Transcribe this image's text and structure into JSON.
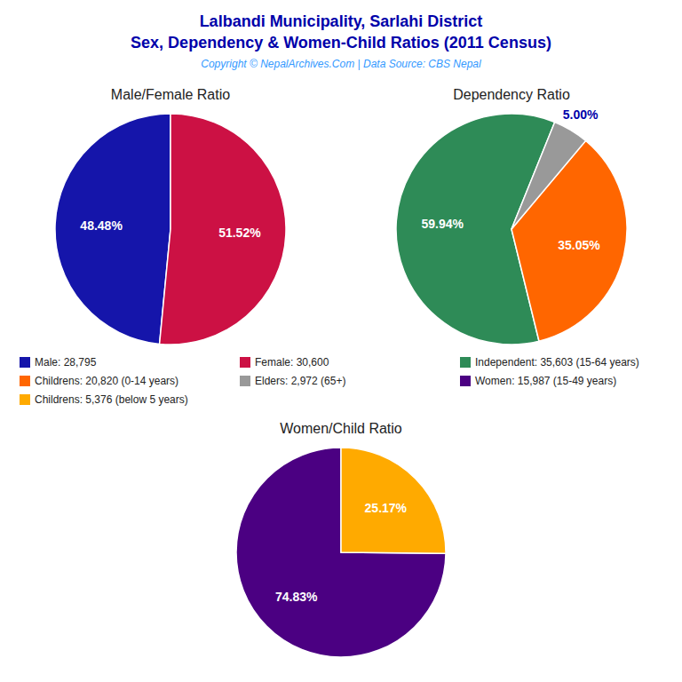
{
  "title": "Lalbandi Municipality, Sarlahi District",
  "subtitle": "Sex, Dependency & Women-Child Ratios (2011 Census)",
  "annotations": [
    "Copyright © NepalArchives.Com | Data Source: CBS Nepal"
  ],
  "chart_data": [
    {
      "type": "pie",
      "title": "Male/Female Ratio",
      "categories": [
        "Male: 28,795",
        "Female: 30,600"
      ],
      "values": [
        48.48,
        51.52
      ],
      "value_labels": [
        "48.48%",
        "51.52%"
      ],
      "colors": [
        "#1515AA",
        "#CC1144"
      ],
      "data_labels": true,
      "legend": "bottom"
    },
    {
      "type": "pie",
      "title": "Dependency Ratio",
      "categories": [
        "Independent: 35,603 (15-64 years)",
        "Childrens: 20,820 (0-14 years)",
        "Elders: 2,972 (65+)"
      ],
      "values": [
        59.94,
        35.05,
        5.0
      ],
      "value_labels": [
        "59.94%",
        "35.05%",
        "5.00%"
      ],
      "colors": [
        "#2E8B57",
        "#FF6600",
        "#999999"
      ],
      "data_labels": true,
      "legend": "bottom"
    },
    {
      "type": "pie",
      "title": "Women/Child Ratio",
      "categories": [
        "Women: 15,987 (15-49 years)",
        "Childrens: 5,376 (below 5 years)"
      ],
      "values": [
        74.83,
        25.17
      ],
      "value_labels": [
        "74.83%",
        "25.17%"
      ],
      "colors": [
        "#4B0082",
        "#FFAA00"
      ],
      "data_labels": true,
      "legend": "bottom"
    }
  ]
}
